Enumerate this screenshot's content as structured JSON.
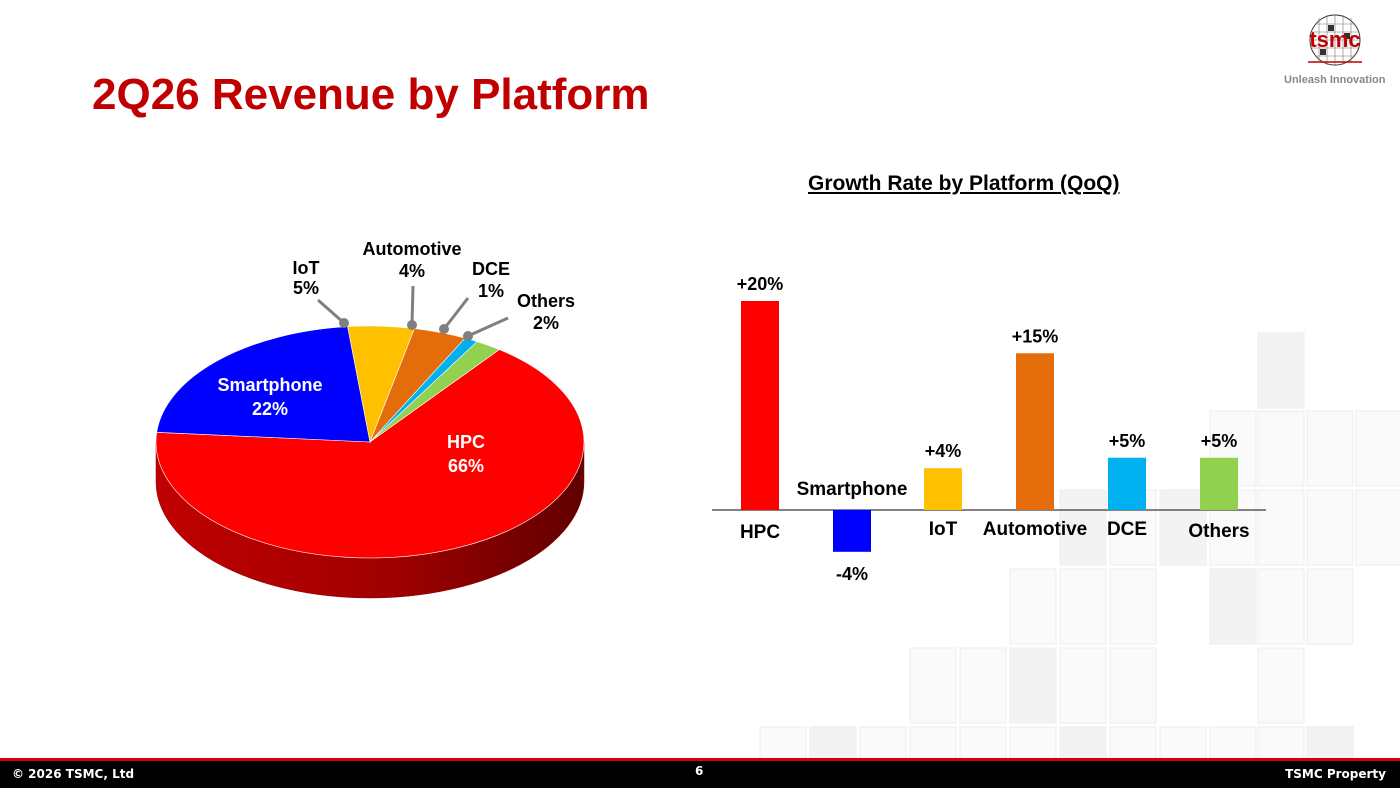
{
  "slide": {
    "title": "2Q26 Revenue by Platform",
    "logo_text": "tsmc",
    "tagline": "Unleash Innovation",
    "footer_left": "© 2026 TSMC, Ltd",
    "page_number": "6",
    "footer_right": "TSMC Property"
  },
  "chart_data": [
    {
      "type": "pie",
      "title": "",
      "slices": [
        {
          "label": "HPC",
          "value": 66,
          "display": "66%",
          "color": "#ff0000"
        },
        {
          "label": "Smartphone",
          "value": 22,
          "display": "22%",
          "color": "#0000ff"
        },
        {
          "label": "IoT",
          "value": 5,
          "display": "5%",
          "color": "#ffc000"
        },
        {
          "label": "Automotive",
          "value": 4,
          "display": "4%",
          "color": "#e46c0a"
        },
        {
          "label": "DCE",
          "value": 1,
          "display": "1%",
          "color": "#00b0f0"
        },
        {
          "label": "Others",
          "value": 2,
          "display": "2%",
          "color": "#92d050"
        }
      ]
    },
    {
      "type": "bar",
      "title": "Growth Rate by Platform (QoQ)",
      "categories": [
        "HPC",
        "Smartphone",
        "IoT",
        "Automotive",
        "DCE",
        "Others"
      ],
      "values": [
        20,
        -4,
        4,
        15,
        5,
        5
      ],
      "value_labels": [
        "+20%",
        "-4%",
        "+4%",
        "+15%",
        "+5%",
        "+5%"
      ],
      "colors": [
        "#ff0000",
        "#0000ff",
        "#ffc000",
        "#e46c0a",
        "#00b0f0",
        "#92d050"
      ],
      "unit": "%"
    }
  ]
}
